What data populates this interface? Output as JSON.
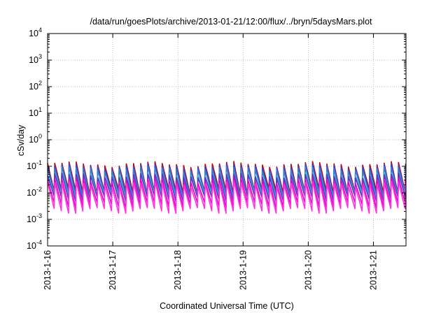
{
  "chart_data": {
    "type": "line",
    "title": "/data/run/goesPlots/archive/2013-01-21/12:00/flux/../bryn/5daysMars.plot",
    "xlabel": "Coordinated Universal Time (UTC)",
    "ylabel": "cSv/day",
    "x_tick_labels": [
      "2013-1-16",
      "2013-1-17",
      "2013-1-18",
      "2013-1-19",
      "2013-1-20",
      "2013-1-21"
    ],
    "x_range": [
      "2013-01-16T00:00",
      "2013-01-21T12:00"
    ],
    "y_scale": "log",
    "y_range": [
      0.0001,
      10000
    ],
    "y_ticks": [
      {
        "base": "10",
        "exp": "-4"
      },
      {
        "base": "10",
        "exp": "-3"
      },
      {
        "base": "10",
        "exp": "-2"
      },
      {
        "base": "10",
        "exp": "-1"
      },
      {
        "base": "10",
        "exp": "0"
      },
      {
        "base": "10",
        "exp": "1"
      },
      {
        "base": "10",
        "exp": "2"
      },
      {
        "base": "10",
        "exp": "3"
      },
      {
        "base": "10",
        "exp": "4"
      }
    ],
    "grid": true,
    "legend": "none",
    "pattern": {
      "description_free": true,
      "periods_per_day": 9.1,
      "peak_levels": [
        0.12,
        0.09,
        0.07,
        0.055,
        0.045
      ],
      "trough_levels": [
        0.012,
        0.008,
        0.005,
        0.003,
        0.002
      ]
    },
    "series": [
      {
        "color": "#cc0000",
        "peak": 0.12,
        "trough": 0.011
      },
      {
        "color": "#1f4fd8",
        "peak": 0.1,
        "trough": 0.009
      },
      {
        "color": "#3a7bd5",
        "peak": 0.08,
        "trough": 0.008
      },
      {
        "color": "#19c6c6",
        "peak": 0.05,
        "trough": 0.007
      },
      {
        "color": "#6a2fc4",
        "peak": 0.045,
        "trough": 0.006
      },
      {
        "color": "#e000c8",
        "peak": 0.03,
        "trough": 0.0035
      },
      {
        "color": "#ff33dd",
        "peak": 0.022,
        "trough": 0.0022
      }
    ]
  }
}
